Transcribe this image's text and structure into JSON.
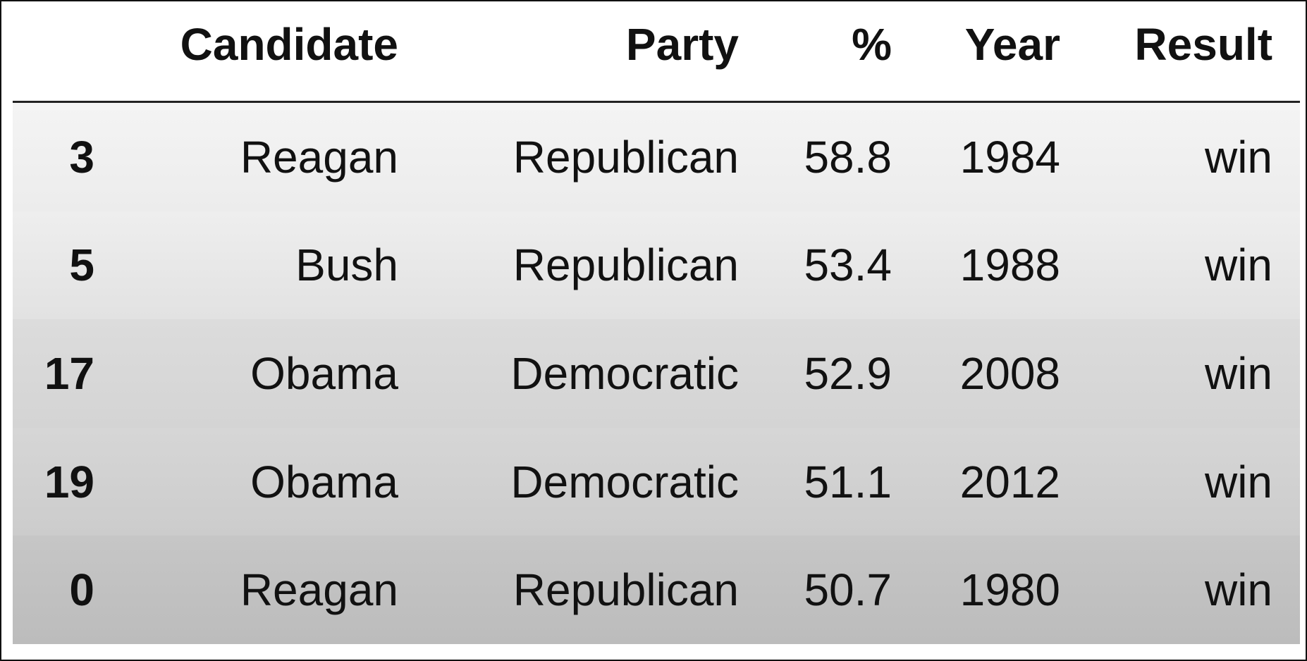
{
  "table": {
    "columns": [
      "Candidate",
      "Party",
      "%",
      "Year",
      "Result"
    ],
    "rows": [
      {
        "index": 3,
        "cells": [
          "Reagan",
          "Republican",
          58.8,
          1984,
          "win"
        ]
      },
      {
        "index": 5,
        "cells": [
          "Bush",
          "Republican",
          53.4,
          1988,
          "win"
        ]
      },
      {
        "index": 17,
        "cells": [
          "Obama",
          "Democratic",
          52.9,
          2008,
          "win"
        ]
      },
      {
        "index": 19,
        "cells": [
          "Obama",
          "Democratic",
          51.1,
          2012,
          "win"
        ]
      },
      {
        "index": 0,
        "cells": [
          "Reagan",
          "Republican",
          50.7,
          1980,
          "win"
        ]
      }
    ]
  }
}
